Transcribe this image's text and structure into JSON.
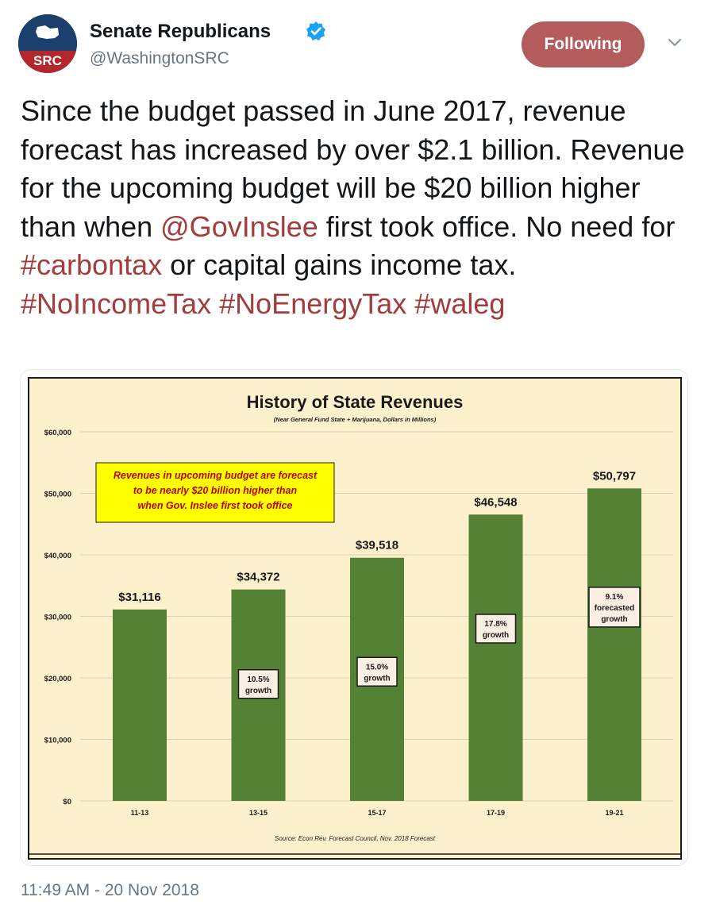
{
  "author": {
    "name": "Senate Republicans",
    "handle": "@WashingtonSRC",
    "avatar_text": "SRC",
    "verified": true
  },
  "follow_button": {
    "label": "Following"
  },
  "caret": {
    "icon": "chevron-down-icon"
  },
  "tweet": {
    "segments": [
      {
        "type": "text",
        "value": "Since the budget passed in June 2017, revenue forecast has increased by over $2.1 billion. Revenue for the upcoming budget will be $20 billion higher than when "
      },
      {
        "type": "link",
        "value": "@GovInslee"
      },
      {
        "type": "text",
        "value": " first took office. No need for "
      },
      {
        "type": "link",
        "value": "#carbontax"
      },
      {
        "type": "text",
        "value": " or capital gains income tax. "
      },
      {
        "type": "link",
        "value": "#NoIncomeTax"
      },
      {
        "type": "text",
        "value": " "
      },
      {
        "type": "link",
        "value": "#NoEnergyTax"
      },
      {
        "type": "text",
        "value": " "
      },
      {
        "type": "link",
        "value": "#waleg"
      }
    ]
  },
  "timestamp": "11:49 AM - 20 Nov 2018",
  "colors": {
    "link": "#a33c3c",
    "button": "#b45b5b",
    "chart_bg": "#fdf0cc",
    "bar": "#548235",
    "callout": "#ffff00",
    "callout_text": "#c00000"
  },
  "chart_data": {
    "type": "bar",
    "title": "History of State Revenues",
    "subtitle": "(Near General Fund State + Marijuana, Dollars in Millions)",
    "categories": [
      "11-13",
      "13-15",
      "15-17",
      "17-19",
      "19-21"
    ],
    "values": [
      31116,
      34372,
      39518,
      46548,
      50797
    ],
    "value_labels": [
      "$31,116",
      "$34,372",
      "$39,518",
      "$46,548",
      "$50,797"
    ],
    "growth_labels": [
      [],
      [
        "10.5%",
        "growth"
      ],
      [
        "15.0%",
        "growth"
      ],
      [
        "17.8%",
        "growth"
      ],
      [
        "9.1%",
        "forecasted",
        "growth"
      ]
    ],
    "growth_label_values": [
      null,
      19000,
      21000,
      28000,
      31500
    ],
    "yticks": [
      0,
      10000,
      20000,
      30000,
      40000,
      50000,
      60000
    ],
    "ytick_labels": [
      "$0",
      "$10,000",
      "$20,000",
      "$30,000",
      "$40,000",
      "$50,000",
      "$60,000"
    ],
    "ylim": [
      0,
      60000
    ],
    "grid": true,
    "legend": "none",
    "callout": [
      "Revenues in upcoming budget are forecast",
      "to be nearly $20 billion higher than",
      "when Gov. Inslee first took office"
    ],
    "source": "Source: Econ Rev. Forecast Council, Nov. 2018 Forecast"
  }
}
